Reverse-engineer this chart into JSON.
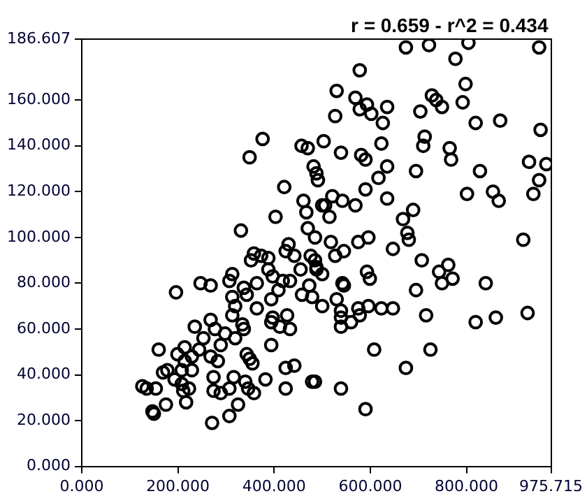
{
  "chart_data": {
    "type": "scatter",
    "annotations": [
      "r = 0.659 - r^2 = 0.434"
    ],
    "xlim": [
      0,
      975.715
    ],
    "xticks": [
      {
        "value": 0,
        "label": "0.000"
      },
      {
        "value": 200,
        "label": "200.000"
      },
      {
        "value": 400,
        "label": "400.000"
      },
      {
        "value": 600,
        "label": "600.000"
      },
      {
        "value": 800,
        "label": "800.000"
      },
      {
        "value": 975.715,
        "label": "975.715"
      }
    ],
    "ylim": [
      0,
      186.607
    ],
    "yticks": [
      {
        "value": 0,
        "label": "0.000"
      },
      {
        "value": 20,
        "label": "20.000"
      },
      {
        "value": 40,
        "label": "40.000"
      },
      {
        "value": 60,
        "label": "60.000"
      },
      {
        "value": 80,
        "label": "80.000"
      },
      {
        "value": 100,
        "label": "100.000"
      },
      {
        "value": 120,
        "label": "120.000"
      },
      {
        "value": 140,
        "label": "140.000"
      },
      {
        "value": 160,
        "label": "160.000"
      },
      {
        "value": 186.607,
        "label": "186.607"
      }
    ],
    "grid": false,
    "legend": false,
    "marker": "circle",
    "series": [
      {
        "color": "#000000",
        "x": [
          376,
          349,
          457,
          470,
          503,
          482,
          488,
          491,
          421,
          461,
          500,
          467,
          403,
          470,
          331,
          485,
          430,
          674,
          722,
          777,
          804,
          951,
          578,
          798,
          530,
          569,
          593,
          578,
          602,
          635,
          527,
          626,
          728,
          737,
          749,
          704,
          792,
          819,
          870,
          954,
          539,
          581,
          590,
          623,
          713,
          710,
          765,
          768,
          635,
          695,
          828,
          930,
          966,
          951,
          939,
          617,
          590,
          801,
          855,
          867,
          635,
          521,
          506,
          542,
          569,
          515,
          689,
          668,
          677,
          680,
          596,
          575,
          518,
          918,
          647,
          358,
          373,
          388,
          352,
          424,
          442,
          476,
          485,
          488,
          500,
          455,
          388,
          397,
          313,
          307,
          247,
          268,
          196,
          364,
          337,
          418,
          433,
          409,
          473,
          458,
          479,
          313,
          343,
          394,
          319,
          364,
          500,
          313,
          268,
          397,
          427,
          394,
          334,
          277,
          235,
          337,
          412,
          433,
          298,
          319,
          253,
          289,
          394,
          214,
          244,
          160,
          199,
          229,
          268,
          283,
          343,
          349,
          355,
          214,
          178,
          169,
          208,
          229,
          193,
          208,
          274,
          316,
          340,
          346,
          358,
          382,
          424,
          442,
          479,
          126,
          135,
          154,
          223,
          211,
          274,
          289,
          307,
          424,
          175,
          217,
          325,
          147,
          150,
          307,
          271,
          545,
          527,
          488,
          707,
          762,
          743,
          771,
          749,
          593,
          599,
          840,
          695,
          542,
          545,
          530,
          539,
          575,
          596,
          623,
          647,
          539,
          560,
          578,
          539,
          716,
          819,
          861,
          927,
          608,
          725,
          674,
          485,
          539,
          590
        ],
        "values": [
          143,
          135,
          140,
          139,
          142,
          131,
          128,
          125,
          122,
          116,
          114,
          111,
          109,
          104,
          103,
          100,
          97,
          183,
          184,
          178,
          185,
          183,
          173,
          167,
          164,
          161,
          158,
          156,
          154,
          157,
          153,
          150,
          162,
          160,
          157,
          155,
          159,
          150,
          151,
          147,
          137,
          136,
          134,
          141,
          144,
          140,
          139,
          134,
          131,
          129,
          129,
          133,
          132,
          125,
          119,
          126,
          121,
          119,
          120,
          116,
          117,
          118,
          114,
          116,
          114,
          109,
          112,
          108,
          102,
          99,
          100,
          98,
          98,
          99,
          95,
          93,
          92,
          91,
          90,
          94,
          92,
          92,
          90,
          86,
          84,
          86,
          86,
          83,
          84,
          81,
          80,
          79,
          76,
          80,
          78,
          81,
          81,
          77,
          79,
          75,
          74,
          74,
          75,
          73,
          70,
          69,
          70,
          66,
          64,
          65,
          66,
          63,
          62,
          60,
          61,
          60,
          61,
          60,
          58,
          56,
          56,
          53,
          53,
          52,
          51,
          51,
          49,
          48,
          48,
          46,
          49,
          47,
          45,
          46,
          42,
          41,
          42,
          42,
          38,
          36,
          39,
          39,
          37,
          34,
          32,
          38,
          43,
          44,
          37,
          35,
          34,
          34,
          34,
          33,
          33,
          32,
          34,
          34,
          27,
          28,
          27,
          24,
          23,
          22,
          19,
          94,
          92,
          87,
          90,
          88,
          85,
          82,
          80,
          85,
          82,
          80,
          77,
          80,
          79,
          73,
          68,
          69,
          70,
          69,
          69,
          65,
          63,
          66,
          61,
          66,
          63,
          65,
          67,
          51,
          51,
          43,
          37,
          34,
          25
        ]
      }
    ]
  }
}
